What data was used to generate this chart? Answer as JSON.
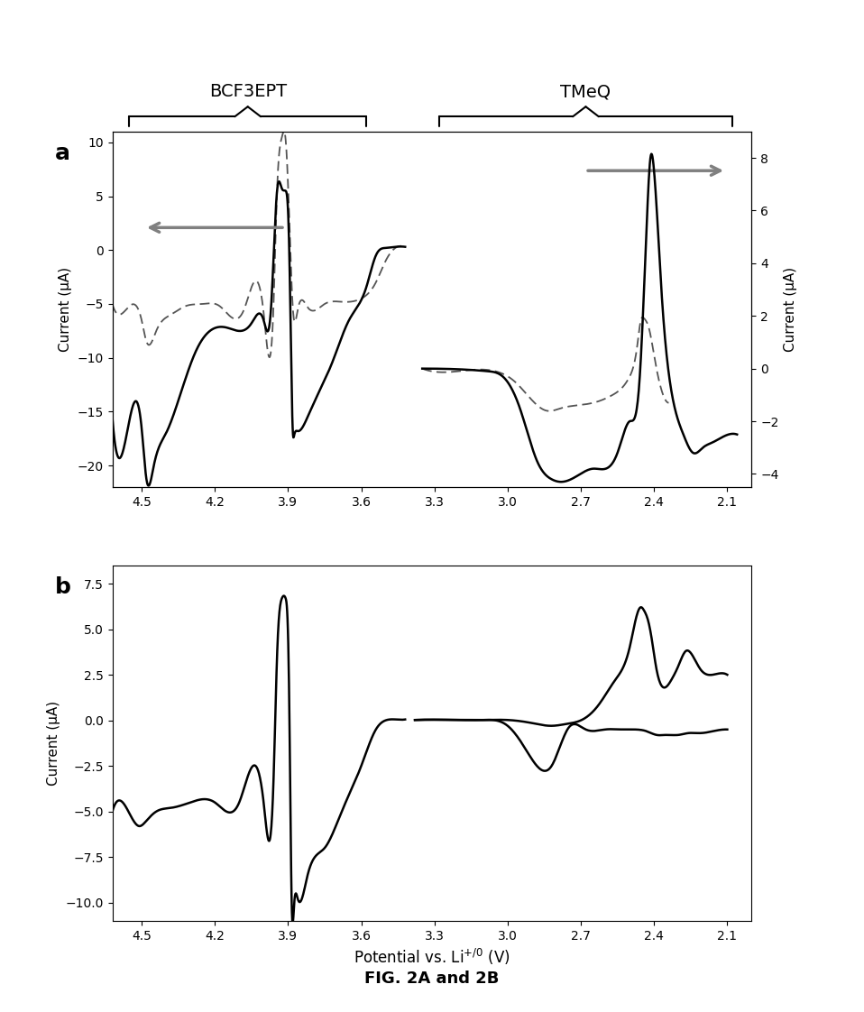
{
  "fig_width": 9.58,
  "fig_height": 11.22,
  "panel_a": {
    "xlim": [
      4.62,
      2.0
    ],
    "ylim_left": [
      -22,
      11
    ],
    "ylim_right": [
      -4.5,
      9.0
    ],
    "yticks_left": [
      -20,
      -15,
      -10,
      -5,
      0,
      5,
      10
    ],
    "yticks_right": [
      -4.0,
      -2.0,
      0.0,
      2.0,
      4.0,
      6.0,
      8.0
    ],
    "xticks": [
      4.5,
      4.2,
      3.9,
      3.6,
      3.3,
      3.0,
      2.7,
      2.4,
      2.1
    ],
    "ylabel_left": "Current (μA)",
    "ylabel_right": "Current (μA)",
    "label": "a"
  },
  "panel_b": {
    "xlim": [
      4.62,
      2.0
    ],
    "ylim": [
      -11,
      8.5
    ],
    "yticks": [
      -10.0,
      -7.5,
      -5.0,
      -2.5,
      0.0,
      2.5,
      5.0,
      7.5
    ],
    "xticks": [
      4.5,
      4.2,
      3.9,
      3.6,
      3.3,
      3.0,
      2.7,
      2.4,
      2.1
    ],
    "ylabel": "Current (μA)",
    "xlabel": "Potential vs. Li+/0 (V)",
    "label": "b"
  },
  "caption": "FIG. 2A and 2B",
  "background_color": "#ffffff",
  "line_color": "#000000",
  "dashed_color": "#555555"
}
